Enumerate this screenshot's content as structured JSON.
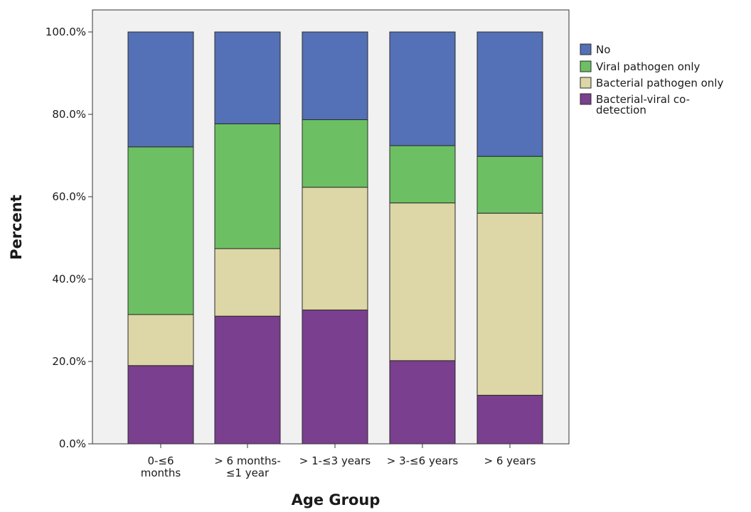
{
  "chart_data": {
    "type": "bar",
    "stacked": true,
    "categories": [
      [
        "0-≤6",
        "months"
      ],
      [
        "> 6 months-",
        "≤1 year"
      ],
      [
        "> 1-≤3 years"
      ],
      [
        "> 3-≤6 years"
      ],
      [
        "> 6 years"
      ]
    ],
    "series": [
      {
        "name": "Bacterial-viral co-detection",
        "legend_lines": [
          "Bacterial-viral co-",
          "detection"
        ],
        "color": "#7a3f8e",
        "values": [
          19.0,
          31.0,
          32.5,
          20.2,
          11.8
        ]
      },
      {
        "name": "Bacterial pathogen only",
        "color": "#ddd6a6",
        "values": [
          12.4,
          16.4,
          29.8,
          38.3,
          44.2
        ]
      },
      {
        "name": "Viral pathogen only",
        "color": "#6cc063",
        "values": [
          40.7,
          30.3,
          16.4,
          13.9,
          13.8
        ]
      },
      {
        "name": "No",
        "color": "#5470b6",
        "values": [
          27.9,
          22.3,
          21.3,
          27.6,
          30.2
        ]
      }
    ],
    "legend_order": [
      "No",
      "Viral pathogen only",
      "Bacterial pathogen only",
      "Bacterial-viral co-detection"
    ],
    "xlabel": "Age Group",
    "ylabel": "Percent",
    "ylim": [
      0,
      100
    ],
    "yticks": [
      "0.0%",
      "20.0%",
      "40.0%",
      "60.0%",
      "80.0%",
      "100.0%"
    ],
    "legend_position": "right",
    "grid": false,
    "plot_background": "#f1f1f1"
  }
}
